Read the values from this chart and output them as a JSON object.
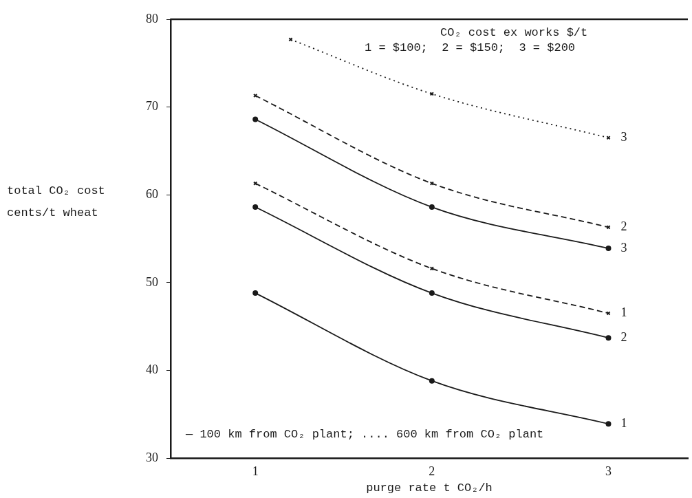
{
  "chart_data": {
    "type": "line",
    "xlabel": "purge rate t CO₂/h",
    "ylabel": "total CO₂ cost cents/t wheat",
    "x": [
      1,
      2,
      3
    ],
    "xlim": [
      0.52,
      3.45
    ],
    "xticks": [
      1,
      2,
      3
    ],
    "ylim": [
      30,
      80
    ],
    "yticks": [
      30,
      40,
      50,
      60,
      70,
      80
    ],
    "grid": false,
    "legend": false,
    "series": [
      {
        "name": "1",
        "color": "#1a1a1a",
        "line_style": "solid",
        "marker": "circle",
        "values": [
          48.8,
          38.8,
          33.9
        ]
      },
      {
        "name": "2",
        "color": "#1a1a1a",
        "line_style": "solid",
        "marker": "circle",
        "values": [
          58.6,
          48.8,
          43.7
        ]
      },
      {
        "name": "3",
        "color": "#1a1a1a",
        "line_style": "solid",
        "marker": "circle",
        "values": [
          68.6,
          58.6,
          53.9
        ]
      },
      {
        "name": "1",
        "color": "#1a1a1a",
        "line_style": "dashed",
        "marker": "cross",
        "values": [
          61.3,
          51.6,
          46.5
        ]
      },
      {
        "name": "2",
        "color": "#1a1a1a",
        "line_style": "dashed",
        "marker": "cross",
        "values": [
          71.3,
          61.3,
          56.3
        ]
      },
      {
        "name": "3",
        "color": "#1a1a1a",
        "line_style": "dotted",
        "marker": "cross",
        "x": [
          1.2,
          2,
          3
        ],
        "values": [
          77.7,
          71.5,
          66.5
        ]
      }
    ],
    "annotations": [
      "CO₂ cost ex works $/t",
      "1 = $100;  2 = $150;  3 = $200",
      "— 100 km from CO₂ plant; .... 600 km from CO₂ plant"
    ]
  }
}
